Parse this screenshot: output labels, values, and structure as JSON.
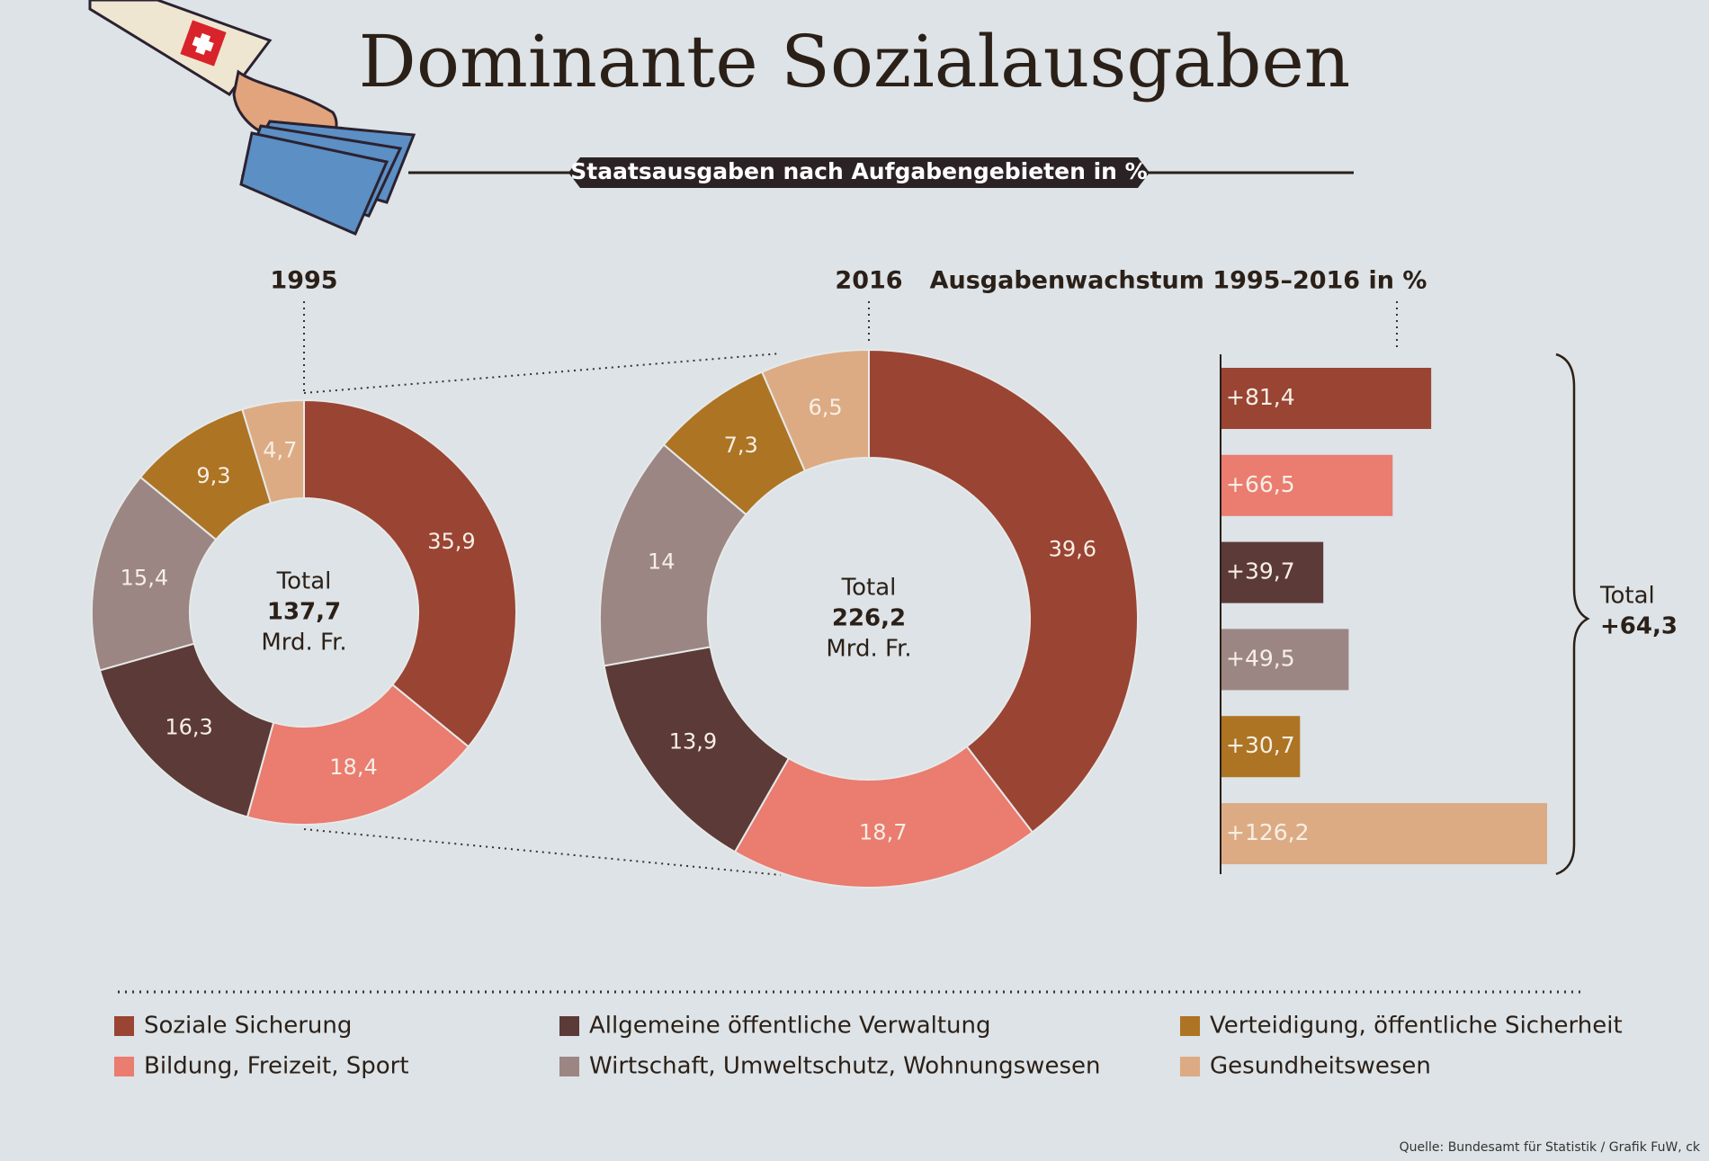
{
  "title": "Dominante Sozialausgaben",
  "subtitle": "Staatsausgaben nach Aufgabengebieten in %",
  "source": "Quelle: Bundesamt für Statistik / Grafik FuW, ck",
  "legend": {
    "items": [
      "Soziale Sicherung",
      "Bildung, Freizeit, Sport",
      "Allgemeine öffentliche Verwaltung",
      "Wirtschaft, Umweltschutz, Wohnungswesen",
      "Verteidigung, öffentliche Sicherheit",
      "Gesundheitswesen"
    ],
    "colors": [
      "#9a4434",
      "#ea7c70",
      "#5b3a38",
      "#9b8683",
      "#ad7424",
      "#dcab84"
    ]
  },
  "chart_data": [
    {
      "type": "donut",
      "title": "1995",
      "values": [
        35.9,
        18.4,
        16.3,
        15.4,
        9.3,
        4.7
      ],
      "value_labels": [
        "35,9",
        "18,4",
        "16,3",
        "15,4",
        "9,3",
        "4,7"
      ],
      "total_title": "Total",
      "total": 137.7,
      "total_label": "137,7",
      "total_unit": "Mrd. Fr."
    },
    {
      "type": "donut",
      "title": "2016",
      "values": [
        39.6,
        18.7,
        13.9,
        14,
        7.3,
        6.5
      ],
      "value_labels": [
        "39,6",
        "18,7",
        "13,9",
        "14",
        "7,3",
        "6,5"
      ],
      "total_title": "Total",
      "total": 226.2,
      "total_label": "226,2",
      "total_unit": "Mrd. Fr."
    },
    {
      "type": "bar",
      "title": "Ausgabenwachstum 1995–2016 in %",
      "values": [
        81.4,
        66.5,
        39.7,
        49.5,
        30.7,
        126.2
      ],
      "value_labels": [
        "+81,4",
        "+66,5",
        "+39,7",
        "+49,5",
        "+30,7",
        "+126,2"
      ],
      "total_title": "Total",
      "total": 64.3,
      "total_label": "+64,3"
    }
  ]
}
